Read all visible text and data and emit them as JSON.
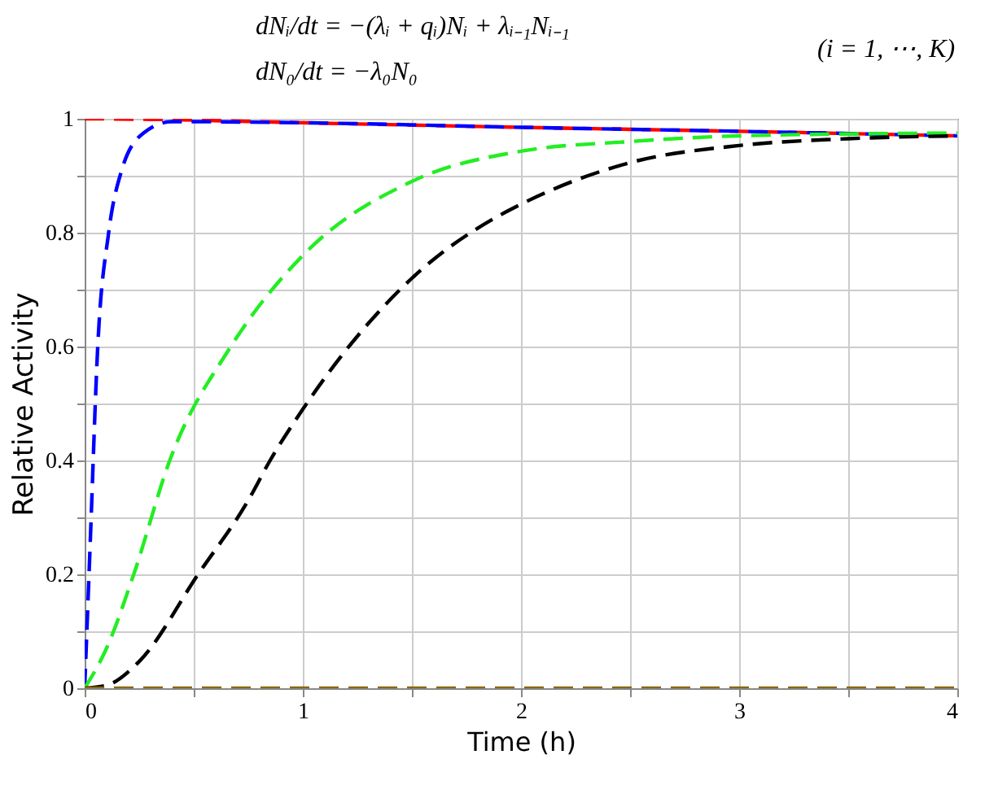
{
  "chart_data": {
    "type": "line",
    "xlabel": "Time (h)",
    "ylabel": "Relative Activity",
    "annotations": [
      "dNᵢ/dt = −(λᵢ + qᵢ)Nᵢ + λᵢ₋₁Nᵢ₋₁",
      "dN₀/dt = −λ₀N₀",
      "(i = 1, ⋯, K)"
    ],
    "xlim": [
      0,
      4
    ],
    "ylim": [
      0,
      1
    ],
    "xticks": [
      0,
      {
        "value": 0.5,
        "label": null
      },
      1,
      {
        "value": 1.5,
        "label": null
      },
      2,
      {
        "value": 2.5,
        "label": null
      },
      3,
      {
        "value": 3.5,
        "label": null
      },
      4
    ],
    "yticks": [
      0,
      {
        "value": 0.1,
        "label": null
      },
      0.2,
      {
        "value": 0.3,
        "label": null
      },
      0.4,
      {
        "value": 0.5,
        "label": null
      },
      0.6,
      {
        "value": 0.7,
        "label": null
      },
      0.8,
      {
        "value": 0.9,
        "label": null
      },
      1
    ],
    "grid": true,
    "legend": false,
    "marker": "none",
    "line_style": "dashed",
    "series": [
      {
        "color": "#ff0000",
        "x": [
          0,
          0.3,
          1,
          2,
          3,
          4
        ],
        "values": [
          1,
          0.999,
          0.993,
          0.985,
          0.978,
          0.97
        ]
      },
      {
        "color": "#0000ff",
        "x": [
          0,
          0.025,
          0.06,
          0.11,
          0.17,
          0.27,
          0.4,
          1,
          2,
          3,
          4
        ],
        "values": [
          0,
          0.25,
          0.6,
          0.8,
          0.91,
          0.975,
          0.995,
          0.993,
          0.985,
          0.978,
          0.97
        ]
      },
      {
        "color": "#22ee22",
        "x": [
          0,
          0.1,
          0.225,
          0.39,
          0.67,
          1,
          1.5,
          2,
          2.5,
          3,
          4
        ],
        "values": [
          0,
          0.07,
          0.2,
          0.4,
          0.6,
          0.76,
          0.89,
          0.943,
          0.96,
          0.97,
          0.975
        ]
      },
      {
        "color": "#000000",
        "x": [
          0,
          0.1,
          0.25,
          0.52,
          0.75,
          0.85,
          1,
          1.5,
          1.9,
          2,
          2.5,
          3,
          3.5,
          4
        ],
        "values": [
          0,
          0.005,
          0.047,
          0.2,
          0.33,
          0.4,
          0.49,
          0.72,
          0.83,
          0.85,
          0.923,
          0.953,
          0.965,
          0.97
        ]
      },
      {
        "color": "#8b6508",
        "x": [
          0,
          4
        ],
        "values": [
          0,
          0
        ]
      }
    ]
  }
}
